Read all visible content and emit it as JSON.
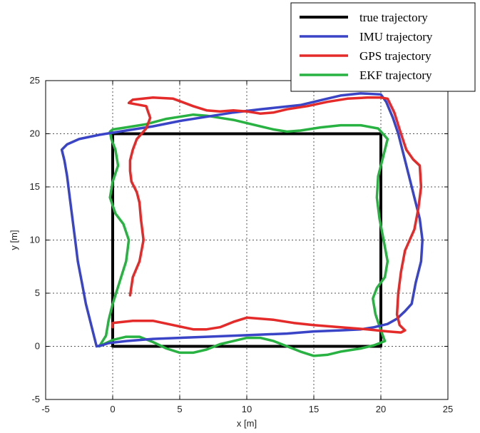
{
  "chart_data": {
    "type": "line",
    "title": "",
    "xlabel": "x [m]",
    "ylabel": "y [m]",
    "xlim": [
      -5,
      25
    ],
    "ylim": [
      -5,
      25
    ],
    "xticks": [
      -5,
      0,
      5,
      10,
      15,
      20,
      25
    ],
    "yticks": [
      -5,
      0,
      5,
      10,
      15,
      20,
      25
    ],
    "grid": true,
    "legend_position": "top-right",
    "series": [
      {
        "name": "true trajectory",
        "color": "#000000",
        "x": [
          0,
          20,
          20,
          0,
          0
        ],
        "y": [
          0,
          0,
          20,
          20,
          0
        ]
      },
      {
        "name": "IMU trajectory",
        "color": "#3a44c6",
        "x": [
          -1.2,
          -1.6,
          -2.0,
          -2.3,
          -2.6,
          -2.8,
          -3.0,
          -3.2,
          -3.4,
          -3.6,
          -3.8,
          -3.4,
          -2.5,
          -1.0,
          1.0,
          3.0,
          5.0,
          7.0,
          9.0,
          11.0,
          12.5,
          14.0,
          15.0,
          16.0,
          17.0,
          18.5,
          20.0,
          20.4,
          20.9,
          21.3,
          21.7,
          22.1,
          22.5,
          22.9,
          23.1,
          23.0,
          22.6,
          22.3,
          21.8,
          21.2,
          20.5,
          19.5,
          18.5,
          17.0,
          15.0,
          13.0,
          11.0,
          9.0,
          7.0,
          5.0,
          3.0,
          1.0,
          -0.3,
          -0.8,
          -1.2
        ],
        "y": [
          0.0,
          2.0,
          4.0,
          6.0,
          8.0,
          10.0,
          12.0,
          14.0,
          16.0,
          17.5,
          18.5,
          19.0,
          19.5,
          19.9,
          20.3,
          20.7,
          21.2,
          21.6,
          22.0,
          22.3,
          22.5,
          22.7,
          23.0,
          23.3,
          23.6,
          23.8,
          23.7,
          23.0,
          21.5,
          20.0,
          18.0,
          16.0,
          14.0,
          12.0,
          10.0,
          8.0,
          6.0,
          4.0,
          3.3,
          2.6,
          2.1,
          1.8,
          1.6,
          1.5,
          1.4,
          1.2,
          1.1,
          1.0,
          0.9,
          0.8,
          0.7,
          0.5,
          0.3,
          0.1,
          0.0
        ]
      },
      {
        "name": "GPS trajectory",
        "color": "#e52a2a",
        "x": [
          1.3,
          1.5,
          2.0,
          2.3,
          2.1,
          2.0,
          1.8,
          1.4,
          1.3,
          1.3,
          1.5,
          1.8,
          2.5,
          2.8,
          2.6,
          2.5,
          1.2,
          1.5,
          3.0,
          4.5,
          6.0,
          7.0,
          8.0,
          9.0,
          10.0,
          11.0,
          12.0,
          13.0,
          14.5,
          16.0,
          17.5,
          19.0,
          20.0,
          20.5,
          21.0,
          21.5,
          21.9,
          22.4,
          22.9,
          23.0,
          22.8,
          22.5,
          21.8,
          21.5,
          21.3,
          21.2,
          21.4,
          21.8,
          21.5,
          20.5,
          19.0,
          17.0,
          15.0,
          13.5,
          12.0,
          11.0,
          10.0,
          9.0,
          8.0,
          7.0,
          6.0,
          4.5,
          3.0,
          1.5,
          0.0,
          0.0
        ],
        "y": [
          4.8,
          6.5,
          8.0,
          10.0,
          12.0,
          13.5,
          14.5,
          15.5,
          16.5,
          17.5,
          18.5,
          19.5,
          20.5,
          21.5,
          22.2,
          22.6,
          22.9,
          23.2,
          23.4,
          23.3,
          22.6,
          22.2,
          22.1,
          22.2,
          22.1,
          21.9,
          22.0,
          22.3,
          22.6,
          23.0,
          23.3,
          23.4,
          23.4,
          23.3,
          22.0,
          20.0,
          18.5,
          17.6,
          17.0,
          15.0,
          13.0,
          11.0,
          9.0,
          7.0,
          5.0,
          3.0,
          2.0,
          1.5,
          1.3,
          1.4,
          1.6,
          1.8,
          2.0,
          2.2,
          2.5,
          2.6,
          2.7,
          2.3,
          1.8,
          1.6,
          1.6,
          2.0,
          2.4,
          2.4,
          2.2,
          1.8
        ]
      },
      {
        "name": "EKF trajectory",
        "color": "#27b241",
        "x": [
          -1.0,
          -0.5,
          -0.3,
          0.0,
          0.5,
          1.0,
          1.2,
          0.8,
          0.2,
          -0.2,
          0.0,
          0.4,
          0.2,
          -0.1,
          -0.2,
          0.0,
          1.0,
          2.5,
          4.0,
          5.0,
          6.0,
          7.0,
          8.0,
          9.0,
          10.0,
          11.0,
          12.0,
          13.0,
          14.0,
          15.5,
          17.0,
          18.5,
          19.8,
          20.5,
          20.2,
          19.8,
          19.7,
          19.9,
          20.2,
          20.5,
          20.3,
          19.7,
          19.4,
          19.6,
          20.0,
          20.3,
          19.5,
          18.5,
          17.0,
          16.0,
          15.0,
          14.0,
          13.0,
          12.0,
          11.0,
          10.0,
          9.0,
          8.0,
          7.0,
          6.0,
          5.0,
          4.0,
          3.0,
          2.0,
          1.0,
          0.0,
          -0.5,
          -1.0
        ],
        "y": [
          0.0,
          1.0,
          2.5,
          4.0,
          6.0,
          8.0,
          10.0,
          11.5,
          12.5,
          14.0,
          15.5,
          17.0,
          18.5,
          19.5,
          20.2,
          20.4,
          20.6,
          20.9,
          21.4,
          21.6,
          21.8,
          21.7,
          21.5,
          21.3,
          21.0,
          20.7,
          20.4,
          20.2,
          20.3,
          20.6,
          20.8,
          20.8,
          20.5,
          19.5,
          18.0,
          16.0,
          14.0,
          12.0,
          10.0,
          8.0,
          6.5,
          5.5,
          4.5,
          3.0,
          1.5,
          0.5,
          0.1,
          -0.2,
          -0.5,
          -0.8,
          -0.9,
          -0.5,
          0.0,
          0.5,
          0.8,
          0.8,
          0.5,
          0.2,
          -0.3,
          -0.6,
          -0.6,
          -0.2,
          0.4,
          0.9,
          0.9,
          0.6,
          0.3,
          0.0
        ]
      }
    ]
  }
}
